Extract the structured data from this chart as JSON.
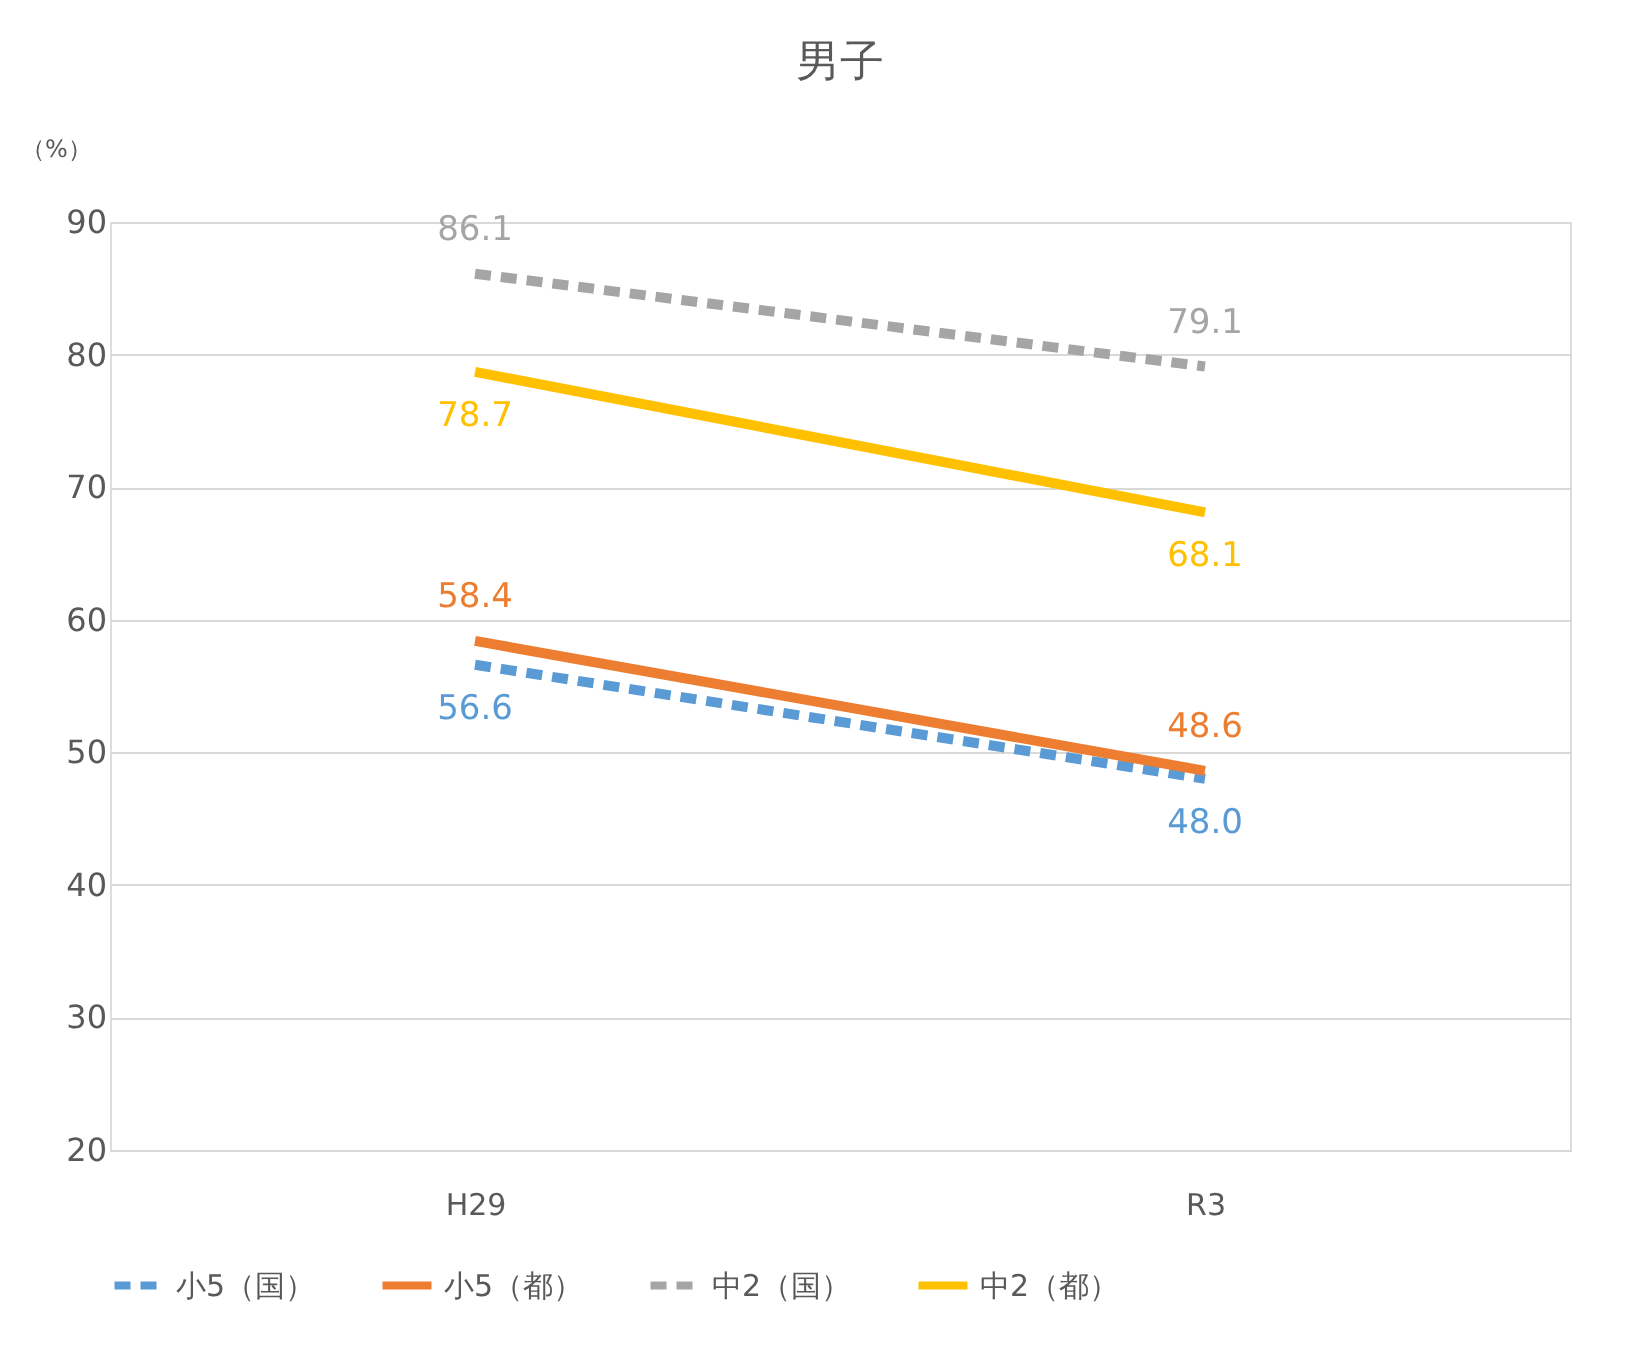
{
  "chart_data": {
    "type": "line",
    "title": "男子",
    "ylabel": "（%）",
    "categories": [
      "H29",
      "R3"
    ],
    "series": [
      {
        "name": "小5（国）",
        "color": "#5b9bd5",
        "line_style": "dashed",
        "values": [
          56.6,
          48.0
        ],
        "value_labels": [
          "56.6",
          "48.0"
        ]
      },
      {
        "name": "小5（都）",
        "color": "#ed7d31",
        "line_style": "solid",
        "values": [
          58.4,
          48.6
        ],
        "value_labels": [
          "58.4",
          "48.6"
        ]
      },
      {
        "name": "中2（国）",
        "color": "#a5a5a5",
        "line_style": "dashed",
        "values": [
          86.1,
          79.1
        ],
        "value_labels": [
          "86.1",
          "79.1"
        ]
      },
      {
        "name": "中2（都）",
        "color": "#ffc000",
        "line_style": "solid",
        "values": [
          78.7,
          68.1
        ],
        "value_labels": [
          "78.7",
          "68.1"
        ]
      }
    ],
    "ylim": [
      20,
      90
    ],
    "yticks": [
      20,
      30,
      40,
      50,
      60,
      70,
      80,
      90
    ],
    "grid": "y",
    "legend": "bottom",
    "marker": "none"
  }
}
